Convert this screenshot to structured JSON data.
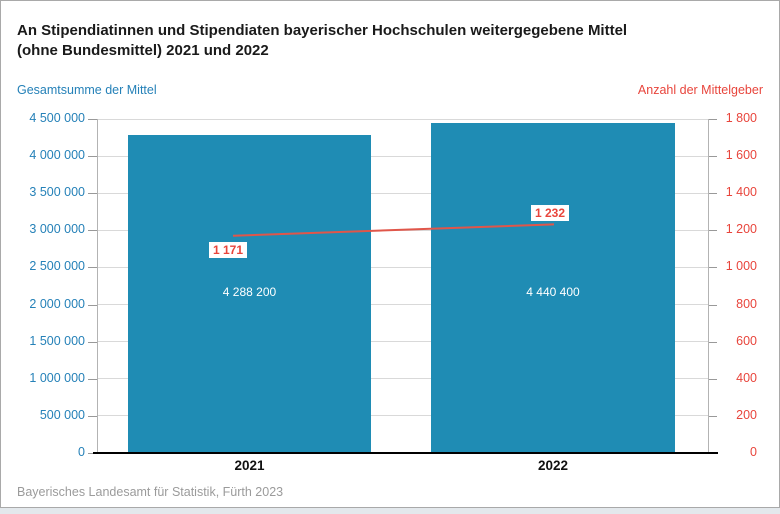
{
  "title": {
    "line1": "An Stipendiatinnen und Stipendiaten bayerischer Hochschulen weitergegebene Mittel",
    "line2": "(ohne Bundesmittel) 2021 und 2022"
  },
  "axis_titles": {
    "left": "Gesamtsumme der Mittel",
    "right": "Anzahl der Mittelgeber"
  },
  "footer": {
    "source": "Bayerisches Landesamt für Statistik, Fürth 2023"
  },
  "colors": {
    "bar": "#1f8cb4",
    "line": "#e0564a",
    "axis_left_text": "#2581b8",
    "axis_right_text": "#e8453c",
    "grid": "#d9d9d9",
    "axis_line": "#b3b3b3",
    "baseline": "#000000",
    "footer_text": "#9b9b9b",
    "bar_value_text": "#ffffff"
  },
  "chart_data": {
    "type": "bar",
    "subtype": "bar-with-line-overlay",
    "title": "An Stipendiatinnen und Stipendiaten bayerischer Hochschulen weitergegebene Mittel (ohne Bundesmittel) 2021 und 2022",
    "categories": [
      "2021",
      "2022"
    ],
    "series": [
      {
        "name": "Gesamtsumme der Mittel",
        "type": "bar",
        "axis": "left",
        "values": [
          4288200,
          4440400
        ],
        "labels": [
          "4 288 200",
          "4 440 400"
        ]
      },
      {
        "name": "Anzahl der Mittelgeber",
        "type": "line",
        "axis": "right",
        "values": [
          1171,
          1232
        ],
        "labels": [
          "1 171",
          "1 232"
        ]
      }
    ],
    "left_axis": {
      "label": "Gesamtsumme der Mittel",
      "min": 0,
      "max": 4500000,
      "step": 500000,
      "tick_labels": [
        "0",
        "500 000",
        "1 000 000",
        "1 500 000",
        "2 000 000",
        "2 500 000",
        "3 000 000",
        "3 500 000",
        "4 000 000",
        "4 500 000"
      ]
    },
    "right_axis": {
      "label": "Anzahl der Mittelgeber",
      "min": 0,
      "max": 1800,
      "step": 200,
      "tick_labels": [
        "0",
        "200",
        "400",
        "600",
        "800",
        "1 000",
        "1 200",
        "1 400",
        "1 600",
        "1 800"
      ]
    },
    "grid": true,
    "legend": "none",
    "source": "Bayerisches Landesamt für Statistik, Fürth 2023"
  }
}
